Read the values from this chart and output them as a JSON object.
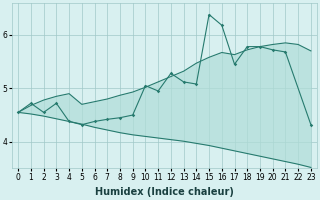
{
  "xlabel": "Humidex (Indice chaleur)",
  "bg_color": "#d8f0f0",
  "grid_color": "#a0c8c8",
  "line_color": "#267a6e",
  "fill_color": "#b0ddd8",
  "x_data": [
    0,
    1,
    2,
    3,
    4,
    5,
    6,
    7,
    8,
    9,
    10,
    11,
    12,
    13,
    14,
    15,
    16,
    17,
    18,
    19,
    20,
    21,
    22,
    23
  ],
  "y_main": [
    4.55,
    4.72,
    4.55,
    4.72,
    4.38,
    4.32,
    4.38,
    4.42,
    4.45,
    4.5,
    5.05,
    4.95,
    5.28,
    5.12,
    5.08,
    6.38,
    6.18,
    5.45,
    5.78,
    5.78,
    5.72,
    5.68,
    null,
    4.32
  ],
  "y_upper": [
    4.55,
    4.68,
    4.78,
    4.85,
    4.9,
    4.7,
    4.75,
    4.8,
    4.87,
    4.93,
    5.02,
    5.12,
    5.22,
    5.32,
    5.47,
    5.58,
    5.67,
    5.63,
    5.72,
    5.78,
    5.82,
    5.85,
    5.82,
    5.7
  ],
  "y_lower": [
    4.55,
    4.52,
    4.48,
    4.43,
    4.38,
    4.33,
    4.27,
    4.22,
    4.17,
    4.13,
    4.1,
    4.07,
    4.04,
    4.01,
    3.97,
    3.93,
    3.88,
    3.83,
    3.78,
    3.73,
    3.68,
    3.63,
    3.58,
    3.52
  ],
  "xlim": [
    -0.5,
    23.5
  ],
  "ylim": [
    3.5,
    6.6
  ],
  "yticks": [
    4,
    5,
    6
  ],
  "xticks": [
    0,
    1,
    2,
    3,
    4,
    5,
    6,
    7,
    8,
    9,
    10,
    11,
    12,
    13,
    14,
    15,
    16,
    17,
    18,
    19,
    20,
    21,
    22,
    23
  ],
  "tick_fontsize": 5.5,
  "label_fontsize": 7,
  "linewidth": 0.8,
  "markersize": 1.8
}
